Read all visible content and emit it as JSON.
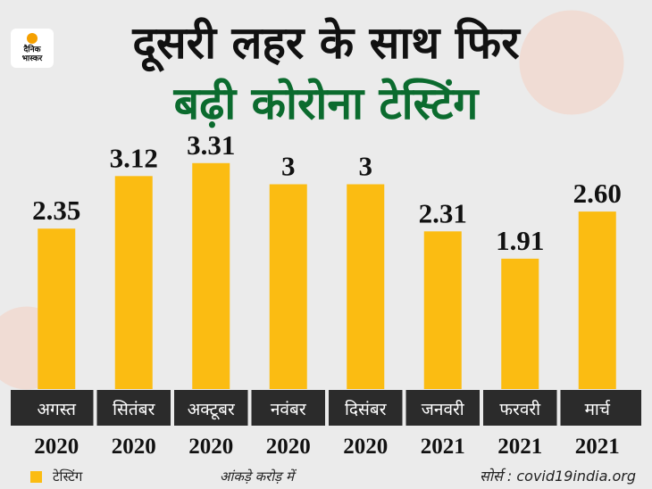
{
  "brand": {
    "line1": "दैनिक",
    "line2": "भास्कर"
  },
  "title_line1": "दूसरी लहर के साथ फिर",
  "title_line2": "बढ़ी कोरोना टेस्टिंग",
  "colors": {
    "bar": "#fbbc12",
    "title_green": "#0b6b2e",
    "label_band": "#2b2b2b",
    "background": "#ebebeb"
  },
  "chart_data": {
    "type": "bar",
    "categories": [
      "अगस्त",
      "सितंबर",
      "अक्टूबर",
      "नवंबर",
      "दिसंबर",
      "जनवरी",
      "फरवरी",
      "मार्च"
    ],
    "years": [
      "2020",
      "2020",
      "2020",
      "2020",
      "2020",
      "2021",
      "2021",
      "2021"
    ],
    "value_labels": [
      "2.35",
      "3.12",
      "3.31",
      "3",
      "3",
      "2.31",
      "1.91",
      "2.60"
    ],
    "series": [
      {
        "name": "टेस्टिंग",
        "values": [
          2.35,
          3.12,
          3.31,
          3,
          3,
          2.31,
          1.91,
          2.6
        ]
      }
    ],
    "ylim": [
      0,
      3.5
    ],
    "legend_position": "bottom-left"
  },
  "legend_label": "टेस्टिंग",
  "unit_note": "आंकड़े करोड़ में",
  "source": "सोर्स : covid19india.org"
}
